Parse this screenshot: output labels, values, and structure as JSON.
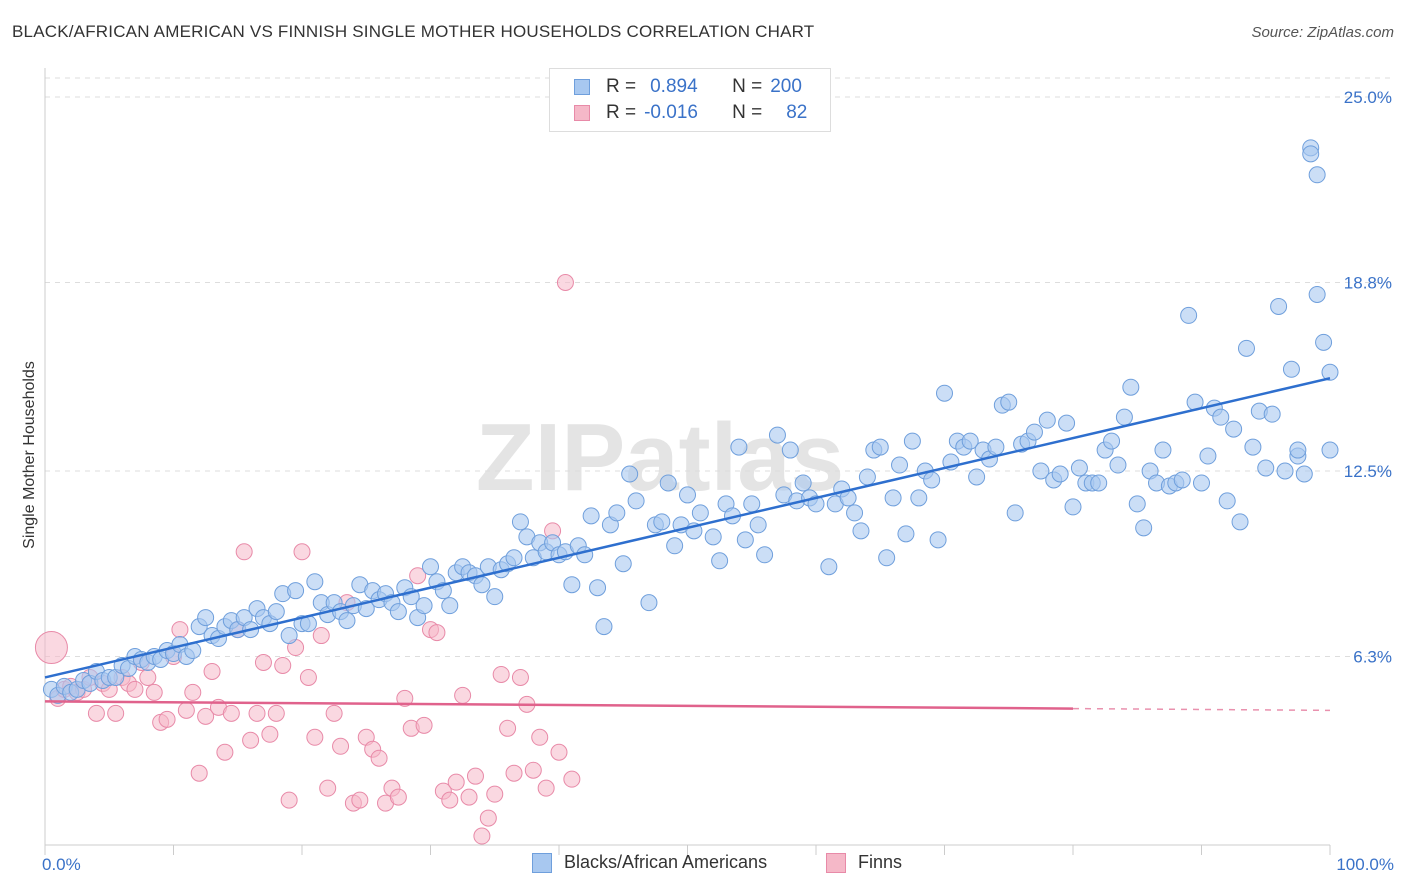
{
  "title": "BLACK/AFRICAN AMERICAN VS FINNISH SINGLE MOTHER HOUSEHOLDS CORRELATION CHART",
  "source": "Source: ZipAtlas.com",
  "watermark": "ZIPatlas",
  "legend": {
    "rows": [
      {
        "r_label": "R =",
        "r_value": "0.894",
        "n_label": "N =",
        "n_value": "200"
      },
      {
        "r_label": "R =",
        "r_value": "-0.016",
        "n_label": "N =",
        "n_value": "82"
      }
    ]
  },
  "bottom_legend": [
    "Blacks/African Americans",
    "Finns"
  ],
  "colors": {
    "blue_fill": "#a8c8f0",
    "blue_stroke": "#6f9fdc",
    "blue_line": "#2e6fce",
    "pink_fill": "#f5b8c8",
    "pink_stroke": "#e88aa8",
    "pink_line": "#e0628c",
    "tick_text": "#3a72c8",
    "grid": "#dddddd"
  },
  "chart_data": {
    "type": "scatter",
    "ylabel": "Single Mother Households",
    "xlim": [
      0,
      100
    ],
    "ylim": [
      0,
      25
    ],
    "x_tick_labels": [
      "0.0%",
      "100.0%"
    ],
    "y_ticks": [
      6.3,
      12.5,
      18.8,
      25.0
    ],
    "y_tick_labels": [
      "6.3%",
      "12.5%",
      "18.8%",
      "25.0%"
    ],
    "grid": true,
    "legend_position": "top-center",
    "series": [
      {
        "name": "Blacks/African Americans",
        "color": "#a8c8f0",
        "trend": {
          "x0": 0,
          "y0": 5.6,
          "x1": 100,
          "y1": 15.6
        },
        "points": [
          [
            0.5,
            5.2
          ],
          [
            1,
            5.0
          ],
          [
            1.5,
            5.3
          ],
          [
            2,
            5.1
          ],
          [
            2.5,
            5.2
          ],
          [
            3,
            5.5
          ],
          [
            3.5,
            5.4
          ],
          [
            4,
            5.8
          ],
          [
            4.5,
            5.5
          ],
          [
            5,
            5.6
          ],
          [
            5.5,
            5.6
          ],
          [
            6,
            6.0
          ],
          [
            6.5,
            5.9
          ],
          [
            7,
            6.3
          ],
          [
            7.5,
            6.2
          ],
          [
            8,
            6.1
          ],
          [
            8.5,
            6.3
          ],
          [
            9,
            6.2
          ],
          [
            9.5,
            6.5
          ],
          [
            10,
            6.4
          ],
          [
            10.5,
            6.7
          ],
          [
            11,
            6.3
          ],
          [
            11.5,
            6.5
          ],
          [
            12,
            7.3
          ],
          [
            12.5,
            7.6
          ],
          [
            13,
            7.0
          ],
          [
            13.5,
            6.9
          ],
          [
            14,
            7.3
          ],
          [
            14.5,
            7.5
          ],
          [
            15,
            7.2
          ],
          [
            15.5,
            7.6
          ],
          [
            16,
            7.2
          ],
          [
            16.5,
            7.9
          ],
          [
            17,
            7.6
          ],
          [
            17.5,
            7.4
          ],
          [
            18,
            7.8
          ],
          [
            18.5,
            8.4
          ],
          [
            19,
            7.0
          ],
          [
            19.5,
            8.5
          ],
          [
            20,
            7.4
          ],
          [
            20.5,
            7.4
          ],
          [
            21,
            8.8
          ],
          [
            21.5,
            8.1
          ],
          [
            22,
            7.7
          ],
          [
            22.5,
            8.1
          ],
          [
            23,
            7.8
          ],
          [
            23.5,
            7.5
          ],
          [
            24,
            8.0
          ],
          [
            24.5,
            8.7
          ],
          [
            25,
            7.9
          ],
          [
            25.5,
            8.5
          ],
          [
            26,
            8.2
          ],
          [
            26.5,
            8.4
          ],
          [
            27,
            8.1
          ],
          [
            27.5,
            7.8
          ],
          [
            28,
            8.6
          ],
          [
            28.5,
            8.3
          ],
          [
            29,
            7.6
          ],
          [
            29.5,
            8.0
          ],
          [
            30,
            9.3
          ],
          [
            30.5,
            8.8
          ],
          [
            31,
            8.5
          ],
          [
            31.5,
            8.0
          ],
          [
            32,
            9.1
          ],
          [
            32.5,
            9.3
          ],
          [
            33,
            9.1
          ],
          [
            33.5,
            9.0
          ],
          [
            34,
            8.7
          ],
          [
            34.5,
            9.3
          ],
          [
            35,
            8.3
          ],
          [
            35.5,
            9.2
          ],
          [
            36,
            9.4
          ],
          [
            36.5,
            9.6
          ],
          [
            37,
            10.8
          ],
          [
            37.5,
            10.3
          ],
          [
            38,
            9.6
          ],
          [
            38.5,
            10.1
          ],
          [
            39,
            9.8
          ],
          [
            39.5,
            10.1
          ],
          [
            40,
            9.7
          ],
          [
            40.5,
            9.8
          ],
          [
            41,
            8.7
          ],
          [
            41.5,
            10.0
          ],
          [
            42,
            9.7
          ],
          [
            42.5,
            11.0
          ],
          [
            43,
            8.6
          ],
          [
            43.5,
            7.3
          ],
          [
            44,
            10.7
          ],
          [
            44.5,
            11.1
          ],
          [
            45,
            9.4
          ],
          [
            45.5,
            12.4
          ],
          [
            46,
            11.5
          ],
          [
            47,
            8.1
          ],
          [
            47.5,
            10.7
          ],
          [
            48,
            10.8
          ],
          [
            48.5,
            12.1
          ],
          [
            49,
            10.0
          ],
          [
            49.5,
            10.7
          ],
          [
            50,
            11.7
          ],
          [
            50.5,
            10.5
          ],
          [
            51,
            11.1
          ],
          [
            52,
            10.3
          ],
          [
            52.5,
            9.5
          ],
          [
            53,
            11.4
          ],
          [
            53.5,
            11.0
          ],
          [
            54,
            13.3
          ],
          [
            54.5,
            10.2
          ],
          [
            55,
            11.4
          ],
          [
            55.5,
            10.7
          ],
          [
            56,
            9.7
          ],
          [
            57,
            13.7
          ],
          [
            57.5,
            11.7
          ],
          [
            58,
            13.2
          ],
          [
            58.5,
            11.5
          ],
          [
            59,
            12.1
          ],
          [
            59.5,
            11.6
          ],
          [
            60,
            11.4
          ],
          [
            61,
            9.3
          ],
          [
            61.5,
            11.4
          ],
          [
            62,
            11.9
          ],
          [
            62.5,
            11.6
          ],
          [
            63,
            11.1
          ],
          [
            63.5,
            10.5
          ],
          [
            64,
            12.3
          ],
          [
            64.5,
            13.2
          ],
          [
            65,
            13.3
          ],
          [
            65.5,
            9.6
          ],
          [
            66,
            11.6
          ],
          [
            66.5,
            12.7
          ],
          [
            67,
            10.4
          ],
          [
            67.5,
            13.5
          ],
          [
            68,
            11.6
          ],
          [
            68.5,
            12.5
          ],
          [
            69,
            12.2
          ],
          [
            69.5,
            10.2
          ],
          [
            70,
            15.1
          ],
          [
            70.5,
            12.8
          ],
          [
            71,
            13.5
          ],
          [
            71.5,
            13.3
          ],
          [
            72,
            13.5
          ],
          [
            72.5,
            12.3
          ],
          [
            73,
            13.2
          ],
          [
            73.5,
            12.9
          ],
          [
            74,
            13.3
          ],
          [
            74.5,
            14.7
          ],
          [
            75,
            14.8
          ],
          [
            75.5,
            11.1
          ],
          [
            76,
            13.4
          ],
          [
            76.5,
            13.5
          ],
          [
            77,
            13.8
          ],
          [
            77.5,
            12.5
          ],
          [
            78,
            14.2
          ],
          [
            78.5,
            12.2
          ],
          [
            79,
            12.4
          ],
          [
            79.5,
            14.1
          ],
          [
            80,
            11.3
          ],
          [
            80.5,
            12.6
          ],
          [
            81,
            12.1
          ],
          [
            81.5,
            12.1
          ],
          [
            82,
            12.1
          ],
          [
            82.5,
            13.2
          ],
          [
            83,
            13.5
          ],
          [
            83.5,
            12.7
          ],
          [
            84,
            14.3
          ],
          [
            84.5,
            15.3
          ],
          [
            85,
            11.4
          ],
          [
            85.5,
            10.6
          ],
          [
            86,
            12.5
          ],
          [
            86.5,
            12.1
          ],
          [
            87,
            13.2
          ],
          [
            87.5,
            12.0
          ],
          [
            88,
            12.1
          ],
          [
            88.5,
            12.2
          ],
          [
            89,
            17.7
          ],
          [
            89.5,
            14.8
          ],
          [
            90,
            12.1
          ],
          [
            90.5,
            13.0
          ],
          [
            91,
            14.6
          ],
          [
            91.5,
            14.3
          ],
          [
            92,
            11.5
          ],
          [
            92.5,
            13.9
          ],
          [
            93,
            10.8
          ],
          [
            93.5,
            16.6
          ],
          [
            94,
            13.3
          ],
          [
            94.5,
            14.5
          ],
          [
            95,
            12.6
          ],
          [
            95.5,
            14.4
          ],
          [
            96,
            18.0
          ],
          [
            96.5,
            12.5
          ],
          [
            97,
            15.9
          ],
          [
            97.5,
            13.0
          ],
          [
            98,
            12.4
          ],
          [
            98.5,
            23.3
          ],
          [
            99,
            18.4
          ],
          [
            99.5,
            16.8
          ],
          [
            100,
            15.8
          ],
          [
            99,
            22.4
          ],
          [
            98.5,
            23.1
          ],
          [
            100,
            13.2
          ],
          [
            97.5,
            13.2
          ]
        ]
      },
      {
        "name": "Finns",
        "color": "#f5b8c8",
        "trend": {
          "x0": 0,
          "y0": 4.8,
          "x1": 100,
          "y1": 4.5,
          "solid_until": 80
        },
        "points": [
          [
            0.5,
            6.6
          ],
          [
            1,
            4.9
          ],
          [
            1.5,
            5.2
          ],
          [
            2,
            5.3
          ],
          [
            2.5,
            5.1
          ],
          [
            3,
            5.2
          ],
          [
            3.5,
            5.6
          ],
          [
            4,
            4.4
          ],
          [
            4.5,
            5.4
          ],
          [
            5,
            5.2
          ],
          [
            5.5,
            4.4
          ],
          [
            6,
            5.6
          ],
          [
            6.5,
            5.4
          ],
          [
            7,
            5.2
          ],
          [
            7.5,
            6.1
          ],
          [
            8,
            5.6
          ],
          [
            8.5,
            5.1
          ],
          [
            9,
            4.1
          ],
          [
            9.5,
            4.2
          ],
          [
            10,
            6.3
          ],
          [
            10.5,
            7.2
          ],
          [
            11,
            4.5
          ],
          [
            11.5,
            5.1
          ],
          [
            12,
            2.4
          ],
          [
            12.5,
            4.3
          ],
          [
            13,
            5.8
          ],
          [
            13.5,
            4.6
          ],
          [
            14,
            3.1
          ],
          [
            14.5,
            4.4
          ],
          [
            15,
            7.2
          ],
          [
            15.5,
            9.8
          ],
          [
            16,
            3.5
          ],
          [
            16.5,
            4.4
          ],
          [
            17,
            6.1
          ],
          [
            17.5,
            3.7
          ],
          [
            18,
            4.4
          ],
          [
            18.5,
            6.0
          ],
          [
            19,
            1.5
          ],
          [
            19.5,
            6.6
          ],
          [
            20,
            9.8
          ],
          [
            20.5,
            5.6
          ],
          [
            21,
            3.6
          ],
          [
            21.5,
            7.0
          ],
          [
            22,
            1.9
          ],
          [
            22.5,
            4.4
          ],
          [
            23,
            3.3
          ],
          [
            23.5,
            8.1
          ],
          [
            24,
            1.4
          ],
          [
            24.5,
            1.5
          ],
          [
            25,
            3.6
          ],
          [
            25.5,
            3.2
          ],
          [
            26,
            2.9
          ],
          [
            26.5,
            1.4
          ],
          [
            27,
            1.9
          ],
          [
            27.5,
            1.6
          ],
          [
            28,
            4.9
          ],
          [
            28.5,
            3.9
          ],
          [
            29,
            9.0
          ],
          [
            29.5,
            4.0
          ],
          [
            30,
            7.2
          ],
          [
            30.5,
            7.1
          ],
          [
            31,
            1.8
          ],
          [
            31.5,
            1.5
          ],
          [
            32,
            2.1
          ],
          [
            32.5,
            5.0
          ],
          [
            33,
            1.6
          ],
          [
            33.5,
            2.3
          ],
          [
            34,
            0.3
          ],
          [
            34.5,
            0.9
          ],
          [
            35,
            1.7
          ],
          [
            35.5,
            5.7
          ],
          [
            36,
            3.9
          ],
          [
            36.5,
            2.4
          ],
          [
            37,
            5.6
          ],
          [
            37.5,
            4.7
          ],
          [
            38,
            2.5
          ],
          [
            38.5,
            3.6
          ],
          [
            39,
            1.9
          ],
          [
            39.5,
            10.5
          ],
          [
            40,
            3.1
          ],
          [
            40.5,
            18.8
          ],
          [
            41,
            2.2
          ]
        ]
      }
    ]
  }
}
